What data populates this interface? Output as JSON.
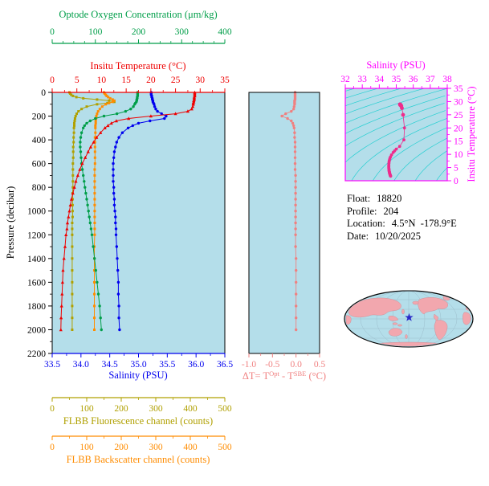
{
  "figure": {
    "info": {
      "float_label": "Float:",
      "float_value": "18820",
      "profile_label": "Profile:",
      "profile_value": "204",
      "location_label": "Location:",
      "location_value": "4.5°N  -178.9°E",
      "date_label": "Date:",
      "date_value": "10/20/2025"
    }
  },
  "colors": {
    "temperature": "#EE0000",
    "salinity": "#0000EE",
    "oxygen": "#009E49",
    "fluorescence": "#B0A000",
    "backscatter": "#FF8C00",
    "delta": "#F08080",
    "ts": "#FF00FF",
    "ts_points": "#EE2C8C",
    "contour": "#00CCCC",
    "plot_bg": "#B4DEEA",
    "frame": "#000000",
    "map_land": "#F2A7AE",
    "map_ocean": "#B4DEEA",
    "star": "#2A2AC8"
  },
  "chart_data": [
    {
      "type": "line",
      "name": "profile-plot",
      "y_axis": {
        "label": "Pressure (decibar)",
        "range": [
          0,
          2200
        ],
        "ticks": [
          "0",
          "200",
          "400",
          "600",
          "800",
          "1000",
          "1200",
          "1400",
          "1600",
          "1800",
          "2000",
          "2200"
        ]
      },
      "pressure": [
        0,
        10,
        20,
        30,
        40,
        50,
        60,
        70,
        80,
        90,
        100,
        120,
        140,
        160,
        180,
        200,
        220,
        240,
        260,
        280,
        300,
        340,
        380,
        420,
        460,
        500,
        550,
        600,
        650,
        700,
        750,
        800,
        850,
        900,
        950,
        1000,
        1050,
        1100,
        1150,
        1200,
        1300,
        1400,
        1500,
        1600,
        1700,
        1800,
        1900,
        2000
      ],
      "series": [
        {
          "name": "oxygen",
          "axis_label": "Optode Oxygen Concentration (μm/kg)",
          "color_key": "oxygen",
          "marker": "circle",
          "range": [
            0,
            400
          ],
          "ticks": [
            "0",
            "100",
            "200",
            "300",
            "400"
          ],
          "values": [
            198,
            198,
            198,
            198,
            197,
            197,
            196,
            196,
            195,
            193,
            191,
            188,
            182,
            170,
            150,
            120,
            100,
            88,
            80,
            75,
            72,
            68,
            66,
            65,
            65,
            66,
            67,
            68,
            70,
            72,
            74,
            76,
            78,
            80,
            82,
            84,
            86,
            88,
            90,
            92,
            95,
            98,
            101,
            104,
            107,
            110,
            112,
            114
          ]
        },
        {
          "name": "temperature",
          "axis_label": "Insitu Temperature (°C)",
          "color_key": "temperature",
          "marker": "triangle",
          "range": [
            0,
            35
          ],
          "ticks": [
            "0",
            "5",
            "10",
            "15",
            "20",
            "25",
            "30",
            "35"
          ],
          "values": [
            28.9,
            28.9,
            28.9,
            28.9,
            28.8,
            28.8,
            28.8,
            28.7,
            28.7,
            28.6,
            28.6,
            28.5,
            28.3,
            27.5,
            25.0,
            20.0,
            15.5,
            13.0,
            12.0,
            11.3,
            10.7,
            9.8,
            9.0,
            8.4,
            7.8,
            7.3,
            6.7,
            6.1,
            5.6,
            5.2,
            4.8,
            4.5,
            4.2,
            3.9,
            3.7,
            3.5,
            3.3,
            3.1,
            3.0,
            2.8,
            2.6,
            2.4,
            2.2,
            2.1,
            2.0,
            1.9,
            1.8,
            1.75
          ]
        },
        {
          "name": "salinity",
          "axis_label": "Salinity (PSU)",
          "color_key": "salinity",
          "marker": "circle",
          "range": [
            33.5,
            36.5
          ],
          "ticks": [
            "33.5",
            "34.0",
            "34.5",
            "35.0",
            "35.5",
            "36.0",
            "36.5"
          ],
          "values": [
            35.22,
            35.22,
            35.22,
            35.23,
            35.23,
            35.24,
            35.24,
            35.25,
            35.25,
            35.26,
            35.27,
            35.28,
            35.3,
            35.33,
            35.4,
            35.48,
            35.45,
            35.2,
            35.0,
            34.9,
            34.82,
            34.72,
            34.66,
            34.62,
            34.6,
            34.58,
            34.57,
            34.56,
            34.56,
            34.56,
            34.56,
            34.57,
            34.57,
            34.58,
            34.58,
            34.59,
            34.6,
            34.6,
            34.61,
            34.61,
            34.62,
            34.63,
            34.64,
            34.65,
            34.65,
            34.66,
            34.66,
            34.67
          ]
        },
        {
          "name": "fluorescence",
          "axis_label": "FLBB Fluorescence channel (counts)",
          "color_key": "fluorescence",
          "marker": "square",
          "range": [
            0,
            500
          ],
          "ticks": [
            "0",
            "100",
            "200",
            "300",
            "400",
            "500"
          ],
          "values": [
            50,
            52,
            55,
            60,
            70,
            90,
            130,
            165,
            180,
            160,
            130,
            100,
            85,
            76,
            71,
            68,
            66,
            65,
            64,
            64,
            63,
            63,
            62,
            62,
            61,
            61,
            61,
            60,
            60,
            60,
            60,
            60,
            59,
            59,
            59,
            59,
            59,
            58,
            58,
            58,
            58,
            58,
            58,
            58,
            58,
            58,
            58,
            58
          ]
        },
        {
          "name": "backscatter",
          "axis_label": "FLBB Backscatter channel (counts)",
          "color_key": "backscatter",
          "marker": "square",
          "range": [
            0,
            500
          ],
          "ticks": [
            "0",
            "100",
            "200",
            "300",
            "400",
            "500"
          ],
          "values": [
            150,
            152,
            155,
            158,
            162,
            168,
            175,
            180,
            175,
            165,
            155,
            145,
            138,
            133,
            130,
            128,
            127,
            126,
            126,
            125,
            125,
            125,
            124,
            124,
            124,
            124,
            124,
            124,
            123,
            123,
            123,
            123,
            123,
            123,
            123,
            123,
            123,
            123,
            123,
            123,
            122,
            122,
            122,
            122,
            122,
            122,
            122,
            122
          ]
        }
      ]
    },
    {
      "type": "scatter",
      "name": "delta-t-plot",
      "x_axis": {
        "range": [
          -1.0,
          0.5
        ],
        "ticks": [
          "-1.0",
          "-0.5",
          "0.0",
          "0.5"
        ],
        "title_parts": {
          "prefix": "ΔT= T",
          "sup1": "Opt",
          "mid": " - T",
          "sup2": "SBE",
          "suffix": " (°C)"
        }
      },
      "values": [
        -0.02,
        -0.02,
        -0.02,
        -0.02,
        -0.02,
        -0.02,
        -0.02,
        -0.03,
        -0.03,
        -0.03,
        -0.03,
        -0.04,
        -0.05,
        -0.1,
        -0.22,
        -0.3,
        -0.18,
        -0.1,
        -0.07,
        -0.05,
        -0.04,
        -0.03,
        -0.03,
        -0.02,
        -0.02,
        -0.02,
        -0.02,
        -0.02,
        -0.02,
        -0.01,
        -0.01,
        -0.01,
        -0.01,
        -0.01,
        -0.01,
        -0.01,
        -0.01,
        -0.01,
        -0.01,
        -0.01,
        -0.01,
        0,
        0,
        0,
        0,
        0,
        0,
        0
      ]
    },
    {
      "type": "scatter",
      "name": "ts-diagram",
      "x_axis": {
        "label": "Salinity (PSU)",
        "range": [
          32,
          38
        ],
        "ticks": [
          "32",
          "33",
          "34",
          "35",
          "36",
          "37",
          "38"
        ]
      },
      "y_axis": {
        "label": "Insitu Temperature (°C)",
        "range": [
          0,
          35
        ],
        "ticks": [
          "0",
          "5",
          "10",
          "15",
          "20",
          "25",
          "30",
          "35"
        ]
      },
      "points_source": "temperature-vs-salinity-series",
      "contour_levels": [
        18,
        19,
        20,
        21,
        22,
        23,
        24,
        25,
        26,
        27,
        28,
        29,
        30
      ]
    },
    {
      "type": "map",
      "name": "location-map",
      "star": {
        "lat": 4.5,
        "lon": -178.9
      }
    }
  ]
}
